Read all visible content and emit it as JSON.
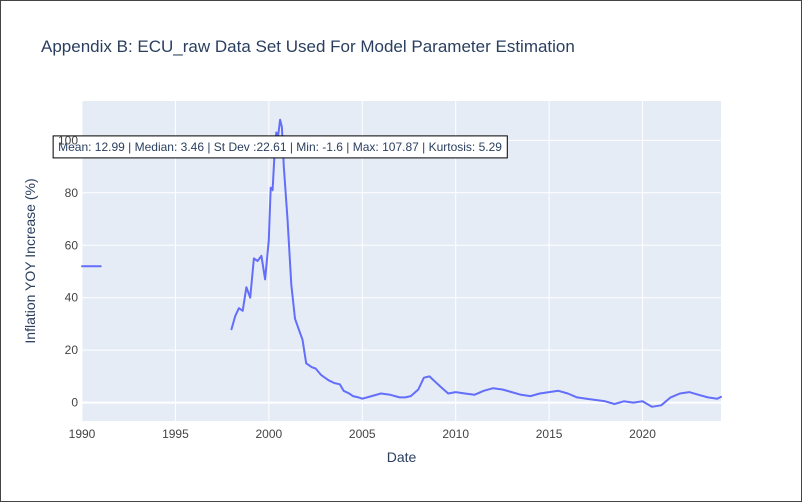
{
  "chart_data": {
    "type": "line",
    "title": "Appendix B: ECU_raw Data Set Used For Model Parameter Estimation",
    "xlabel": "Date",
    "ylabel": "Inflation YOY Increase (%)",
    "xlim": [
      1990,
      2024.2
    ],
    "ylim": [
      -7,
      115
    ],
    "x_ticks": [
      1990,
      1995,
      2000,
      2005,
      2010,
      2015,
      2020
    ],
    "y_ticks": [
      0,
      20,
      40,
      60,
      80,
      100
    ],
    "grid": true,
    "line_color": "#636efa",
    "plot_background": "#e5ecf6",
    "annotation": {
      "text": "Mean: 12.99 | Median: 3.46 | St Dev :22.61 | Min: -1.6 | Max: 107.87 | Kurtosis: 5.29",
      "x": 2000.6,
      "y": 97.5
    },
    "segments": [
      {
        "x": [
          1990.0,
          1991.0
        ],
        "y": [
          52,
          52
        ]
      },
      {
        "x": [
          1998.0,
          1998.2,
          1998.4,
          1998.6,
          1998.8,
          1999.0,
          1999.2,
          1999.4,
          1999.6,
          1999.8,
          2000.0,
          2000.1,
          2000.2,
          2000.3,
          2000.4,
          2000.5,
          2000.6,
          2000.7,
          2000.8,
          2001.0,
          2001.2,
          2001.4,
          2001.6,
          2001.8,
          2002.0,
          2002.3,
          2002.5,
          2002.8,
          2003.0,
          2003.2,
          2003.5,
          2003.8,
          2004.0,
          2004.3,
          2004.5,
          2004.8,
          2005.0,
          2005.5,
          2006.0,
          2006.5,
          2007.0,
          2007.3,
          2007.6,
          2008.0,
          2008.3,
          2008.6,
          2008.9,
          2009.2,
          2009.6,
          2010.0,
          2010.5,
          2011.0,
          2011.5,
          2012.0,
          2012.5,
          2013.0,
          2013.5,
          2014.0,
          2014.5,
          2015.0,
          2015.5,
          2016.0,
          2016.5,
          2017.0,
          2017.5,
          2018.0,
          2018.5,
          2019.0,
          2019.5,
          2020.0,
          2020.5,
          2021.0,
          2021.5,
          2022.0,
          2022.5,
          2023.0,
          2023.5,
          2024.0,
          2024.2
        ],
        "y": [
          28,
          33,
          36,
          35,
          44,
          40,
          55,
          54,
          56,
          47,
          62,
          82,
          81,
          94,
          103,
          102,
          107.87,
          105,
          90,
          70,
          45,
          32,
          28,
          24,
          15,
          13.5,
          13,
          10.5,
          9.5,
          8.5,
          7.5,
          7,
          4.5,
          3.5,
          2.5,
          2,
          1.5,
          2.5,
          3.5,
          3,
          2,
          2,
          2.5,
          5,
          9.5,
          10,
          8,
          6,
          3.5,
          4,
          3.5,
          3,
          4.5,
          5.5,
          5,
          4,
          3,
          2.5,
          3.5,
          4,
          4.5,
          3.5,
          2,
          1.5,
          1,
          0.5,
          -0.5,
          0.5,
          0,
          0.5,
          -1.6,
          -1,
          2,
          3.5,
          4,
          3,
          2,
          1.5,
          2.2
        ]
      }
    ]
  }
}
